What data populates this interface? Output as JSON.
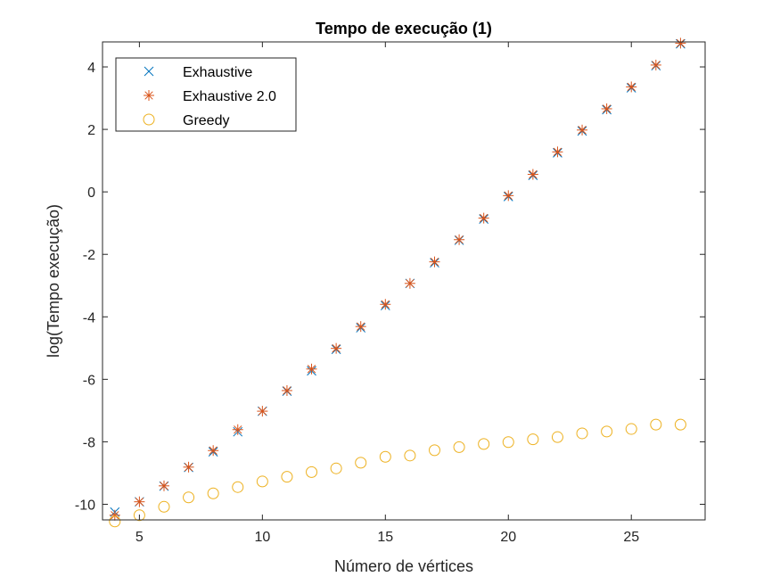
{
  "chart_data": {
    "type": "scatter",
    "title": "Tempo de execução (1)",
    "xlabel": "Número de vértices",
    "ylabel": "log(Tempo execução)",
    "xlim": [
      3.5,
      28
    ],
    "ylim": [
      -10.5,
      4.8
    ],
    "xticks": [
      5,
      10,
      15,
      20,
      25
    ],
    "yticks": [
      -10,
      -8,
      -6,
      -4,
      -2,
      0,
      2,
      4
    ],
    "grid": false,
    "legend_position": "top-left",
    "x": [
      4,
      5,
      6,
      7,
      8,
      9,
      10,
      11,
      12,
      13,
      14,
      15,
      16,
      17,
      18,
      19,
      20,
      21,
      22,
      23,
      24,
      25,
      26,
      27
    ],
    "series": [
      {
        "name": "Exhaustive",
        "marker": "x",
        "color": "#0072BD",
        "values": [
          -10.25,
          -9.92,
          -9.42,
          -8.82,
          -8.32,
          -7.68,
          -7.02,
          -6.38,
          -5.73,
          -5.04,
          -4.35,
          -3.64,
          -2.93,
          -2.27,
          -1.55,
          -0.87,
          -0.15,
          0.53,
          1.25,
          1.95,
          2.63,
          3.33,
          4.04,
          4.74
        ]
      },
      {
        "name": "Exhaustive 2.0",
        "marker": "asterisk",
        "color": "#D95319",
        "values": [
          -10.35,
          -9.92,
          -9.41,
          -8.81,
          -8.28,
          -7.61,
          -7.02,
          -6.36,
          -5.67,
          -5.01,
          -4.31,
          -3.6,
          -2.93,
          -2.24,
          -1.53,
          -0.84,
          -0.12,
          0.56,
          1.28,
          1.98,
          2.66,
          3.36,
          4.06,
          4.76
        ]
      },
      {
        "name": "Greedy",
        "marker": "circle",
        "color": "#EDB120",
        "values": [
          -10.55,
          -10.35,
          -10.08,
          -9.78,
          -9.65,
          -9.45,
          -9.27,
          -9.12,
          -8.97,
          -8.85,
          -8.67,
          -8.48,
          -8.44,
          -8.27,
          -8.17,
          -8.07,
          -8.01,
          -7.92,
          -7.85,
          -7.73,
          -7.67,
          -7.59,
          -7.45,
          -7.45
        ]
      }
    ]
  }
}
